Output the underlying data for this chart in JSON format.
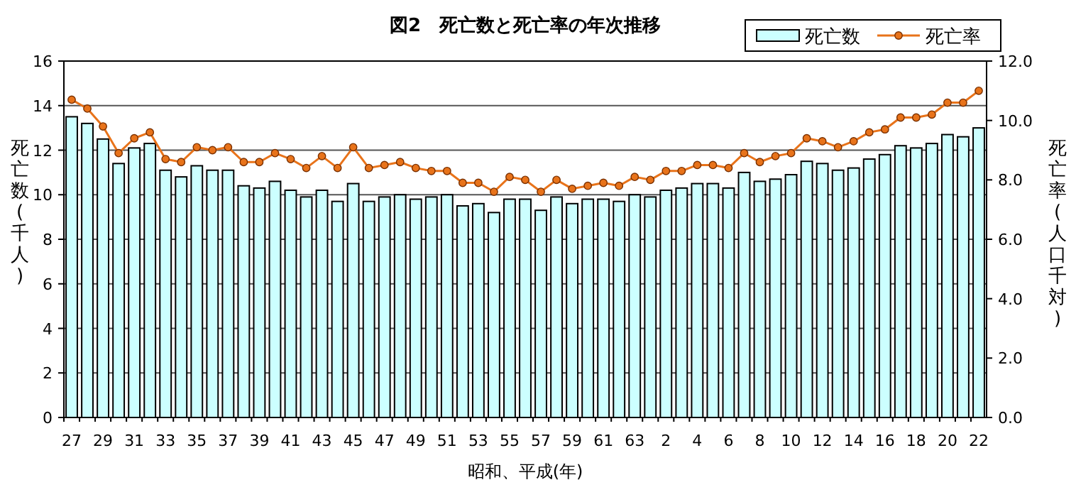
{
  "chart_data": {
    "type": "bar",
    "title": "図2　死亡数と死亡率の年次推移",
    "xlabel": "昭和、平成(年)",
    "ylabel": "死亡数(千人)",
    "y2label": "死亡率(人口千対)",
    "categories": [
      "27",
      null,
      "29",
      null,
      "31",
      null,
      "33",
      null,
      "35",
      null,
      "37",
      null,
      "39",
      null,
      "41",
      null,
      "43",
      null,
      "45",
      null,
      "47",
      null,
      "49",
      null,
      "51",
      null,
      "53",
      null,
      "55",
      null,
      "57",
      null,
      "59",
      null,
      "61",
      null,
      "63",
      null,
      "2",
      null,
      "4",
      null,
      "6",
      null,
      "8",
      null,
      "10",
      null,
      "12",
      null,
      "14",
      null,
      "16",
      null,
      "18",
      null,
      "20",
      null,
      "22"
    ],
    "series": [
      {
        "name": "死亡数",
        "color": "#ccffff",
        "values": [
          13.5,
          13.2,
          12.5,
          11.4,
          12.1,
          12.3,
          11.1,
          10.8,
          11.3,
          11.1,
          11.1,
          10.4,
          10.3,
          10.6,
          10.2,
          9.9,
          10.2,
          9.7,
          10.5,
          9.7,
          9.9,
          10.0,
          9.8,
          9.9,
          10.0,
          9.5,
          9.6,
          9.2,
          9.8,
          9.8,
          9.3,
          9.9,
          9.6,
          9.8,
          9.8,
          9.7,
          10.0,
          9.9,
          10.2,
          10.3,
          10.5,
          10.5,
          10.3,
          11.0,
          10.6,
          10.7,
          10.9,
          11.5,
          11.4,
          11.1,
          11.2,
          11.6,
          11.8,
          12.2,
          12.1,
          12.3,
          12.7,
          12.6,
          13.0
        ]
      },
      {
        "name": "死亡率",
        "type": "line",
        "axis": "y2",
        "color": "#e8731a",
        "values": [
          10.7,
          10.4,
          9.8,
          8.9,
          9.4,
          9.6,
          8.7,
          8.6,
          9.1,
          9.0,
          9.1,
          8.6,
          8.6,
          8.9,
          8.7,
          8.4,
          8.8,
          8.4,
          9.1,
          8.4,
          8.5,
          8.6,
          8.4,
          8.3,
          8.3,
          7.9,
          7.9,
          7.6,
          8.1,
          8.0,
          7.6,
          8.0,
          7.7,
          7.8,
          7.9,
          7.8,
          8.1,
          8.0,
          8.3,
          8.3,
          8.5,
          8.5,
          8.4,
          8.9,
          8.6,
          8.8,
          8.9,
          9.4,
          9.3,
          9.1,
          9.3,
          9.6,
          9.7,
          10.1,
          10.1,
          10.2,
          10.6,
          10.6,
          11.0
        ]
      }
    ],
    "ylim": [
      0,
      16
    ],
    "yticks": [
      0,
      2,
      4,
      6,
      8,
      10,
      12,
      14,
      16
    ],
    "y2lim": [
      0,
      12
    ],
    "y2ticks": [
      {
        "value": 0,
        "label": "0.0"
      },
      {
        "value": 2,
        "label": "2.0"
      },
      {
        "value": 4,
        "label": "4.0"
      },
      {
        "value": 6,
        "label": "6.0"
      },
      {
        "value": 8,
        "label": "8.0"
      },
      {
        "value": 10,
        "label": "10.0"
      },
      {
        "value": 12,
        "label": "12.0"
      }
    ],
    "grid": "y",
    "legend": "top right",
    "marker": "circle"
  }
}
